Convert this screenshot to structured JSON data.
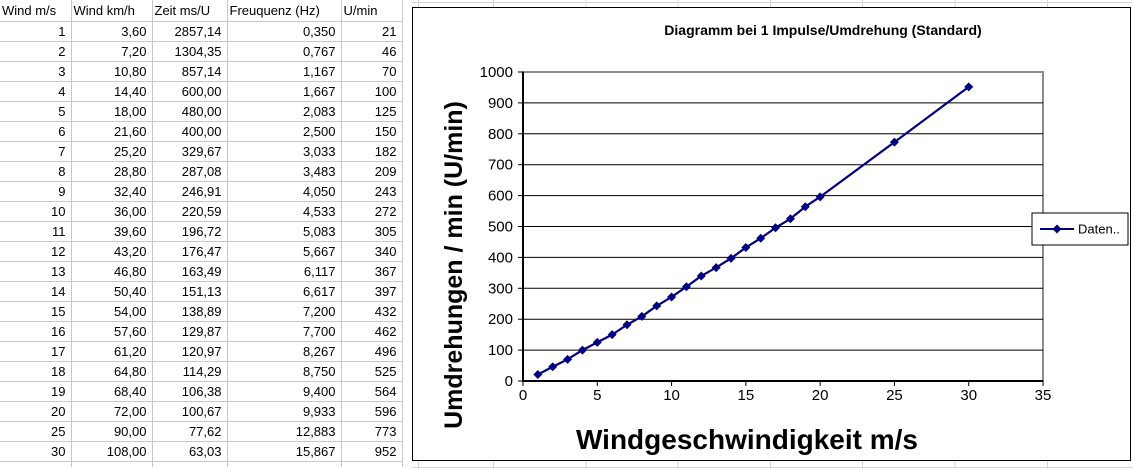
{
  "table": {
    "headers": [
      "Wind m/s",
      "Wind km/h",
      "Zeit ms/U",
      "Freuquenz (Hz)",
      "U/min"
    ],
    "rows": [
      [
        "1",
        "3,60",
        "2857,14",
        "0,350",
        "21"
      ],
      [
        "2",
        "7,20",
        "1304,35",
        "0,767",
        "46"
      ],
      [
        "3",
        "10,80",
        "857,14",
        "1,167",
        "70"
      ],
      [
        "4",
        "14,40",
        "600,00",
        "1,667",
        "100"
      ],
      [
        "5",
        "18,00",
        "480,00",
        "2,083",
        "125"
      ],
      [
        "6",
        "21,60",
        "400,00",
        "2,500",
        "150"
      ],
      [
        "7",
        "25,20",
        "329,67",
        "3,033",
        "182"
      ],
      [
        "8",
        "28,80",
        "287,08",
        "3,483",
        "209"
      ],
      [
        "9",
        "32,40",
        "246,91",
        "4,050",
        "243"
      ],
      [
        "10",
        "36,00",
        "220,59",
        "4,533",
        "272"
      ],
      [
        "11",
        "39,60",
        "196,72",
        "5,083",
        "305"
      ],
      [
        "12",
        "43,20",
        "176,47",
        "5,667",
        "340"
      ],
      [
        "13",
        "46,80",
        "163,49",
        "6,117",
        "367"
      ],
      [
        "14",
        "50,40",
        "151,13",
        "6,617",
        "397"
      ],
      [
        "15",
        "54,00",
        "138,89",
        "7,200",
        "432"
      ],
      [
        "16",
        "57,60",
        "129,87",
        "7,700",
        "462"
      ],
      [
        "17",
        "61,20",
        "120,97",
        "8,267",
        "496"
      ],
      [
        "18",
        "64,80",
        "114,29",
        "8,750",
        "525"
      ],
      [
        "19",
        "68,40",
        "106,38",
        "9,400",
        "564"
      ],
      [
        "20",
        "72,00",
        "100,67",
        "9,933",
        "596"
      ],
      [
        "25",
        "90,00",
        "77,62",
        "12,883",
        "773"
      ],
      [
        "30",
        "108,00",
        "63,03",
        "15,867",
        "952"
      ]
    ]
  },
  "chart_data": {
    "type": "line",
    "title": "Diagramm bei 1 Impulse/Umdrehung (Standard)",
    "xlabel": "Windgeschwindigkeit m/s",
    "ylabel": "Umdrehungen / min (U/min)",
    "legend_label": "Daten..",
    "legend_position": "right",
    "x": [
      1,
      2,
      3,
      4,
      5,
      6,
      7,
      8,
      9,
      10,
      11,
      12,
      13,
      14,
      15,
      16,
      17,
      18,
      19,
      20,
      25,
      30
    ],
    "y": [
      21,
      46,
      70,
      100,
      125,
      150,
      182,
      209,
      243,
      272,
      305,
      340,
      367,
      397,
      432,
      462,
      496,
      525,
      564,
      596,
      773,
      952
    ],
    "xlim": [
      0,
      35
    ],
    "ylim": [
      0,
      1000
    ],
    "xticks": [
      0,
      5,
      10,
      15,
      20,
      25,
      30,
      35
    ],
    "yticks": [
      0,
      100,
      200,
      300,
      400,
      500,
      600,
      700,
      800,
      900,
      1000
    ],
    "grid": "horizontal",
    "marker": "diamond",
    "colors": {
      "series": "#000080",
      "gridline": "#000000",
      "plot_border": "#8c8c8c",
      "axis": "#000000"
    }
  }
}
